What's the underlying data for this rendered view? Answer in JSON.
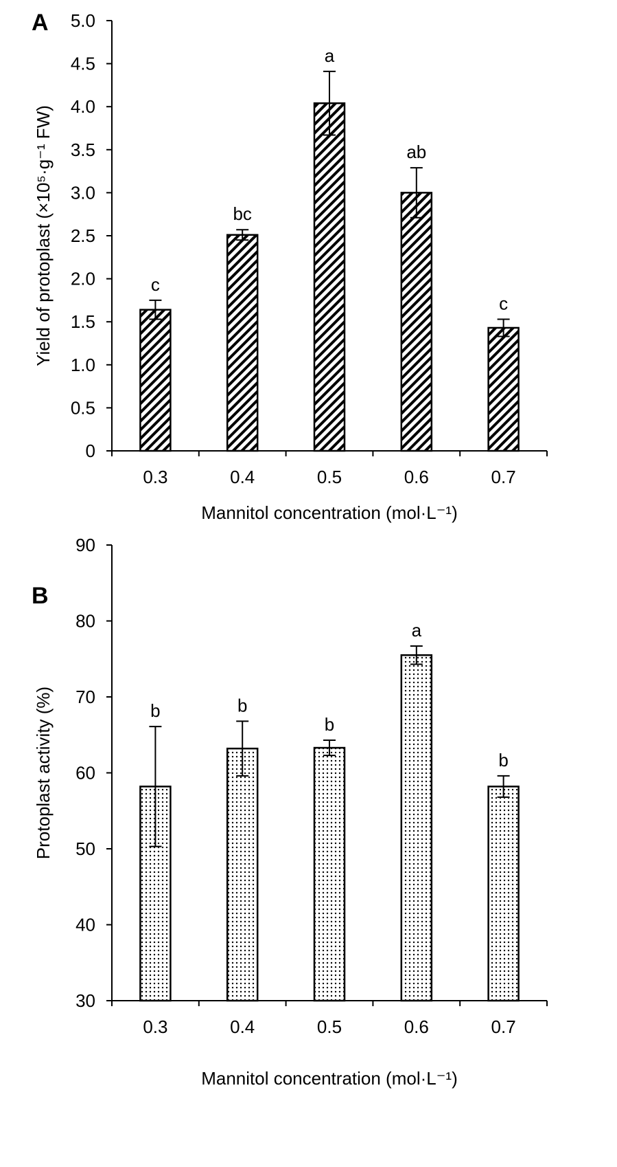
{
  "chart_data": [
    {
      "panel": "A",
      "type": "bar",
      "categories": [
        "0.3",
        "0.4",
        "0.5",
        "0.6",
        "0.7"
      ],
      "values": [
        1.64,
        2.51,
        4.04,
        3.0,
        1.43
      ],
      "errors": [
        0.11,
        0.06,
        0.37,
        0.29,
        0.1
      ],
      "significance": [
        "c",
        "bc",
        "a",
        "ab",
        "c"
      ],
      "xlabel": "Mannitol  concentration (mol·L⁻¹)",
      "ylabel": "Yield of protoplast (×10⁵·g⁻¹ FW)",
      "ylim": [
        0,
        5
      ],
      "yticks": [
        "0",
        "0.5",
        "1.0",
        "1.5",
        "2.0",
        "2.5",
        "3.0",
        "3.5",
        "4.0",
        "4.5",
        "5.0"
      ],
      "fill": "diagonal-hatch",
      "grid": false
    },
    {
      "panel": "B",
      "type": "bar",
      "categories": [
        "0.3",
        "0.4",
        "0.5",
        "0.6",
        "0.7"
      ],
      "values": [
        58.2,
        63.2,
        63.3,
        75.5,
        58.2
      ],
      "errors": [
        7.9,
        3.6,
        1.0,
        1.2,
        1.4
      ],
      "significance": [
        "b",
        "b",
        "b",
        "a",
        "b"
      ],
      "xlabel": "Mannitol  concentration (mol·L⁻¹)",
      "ylabel": "Protoplast activity (%)",
      "ylim": [
        30,
        90
      ],
      "yticks": [
        "30",
        "40",
        "50",
        "60",
        "70",
        "80",
        "90"
      ],
      "fill": "dot-stipple",
      "grid": false
    }
  ]
}
